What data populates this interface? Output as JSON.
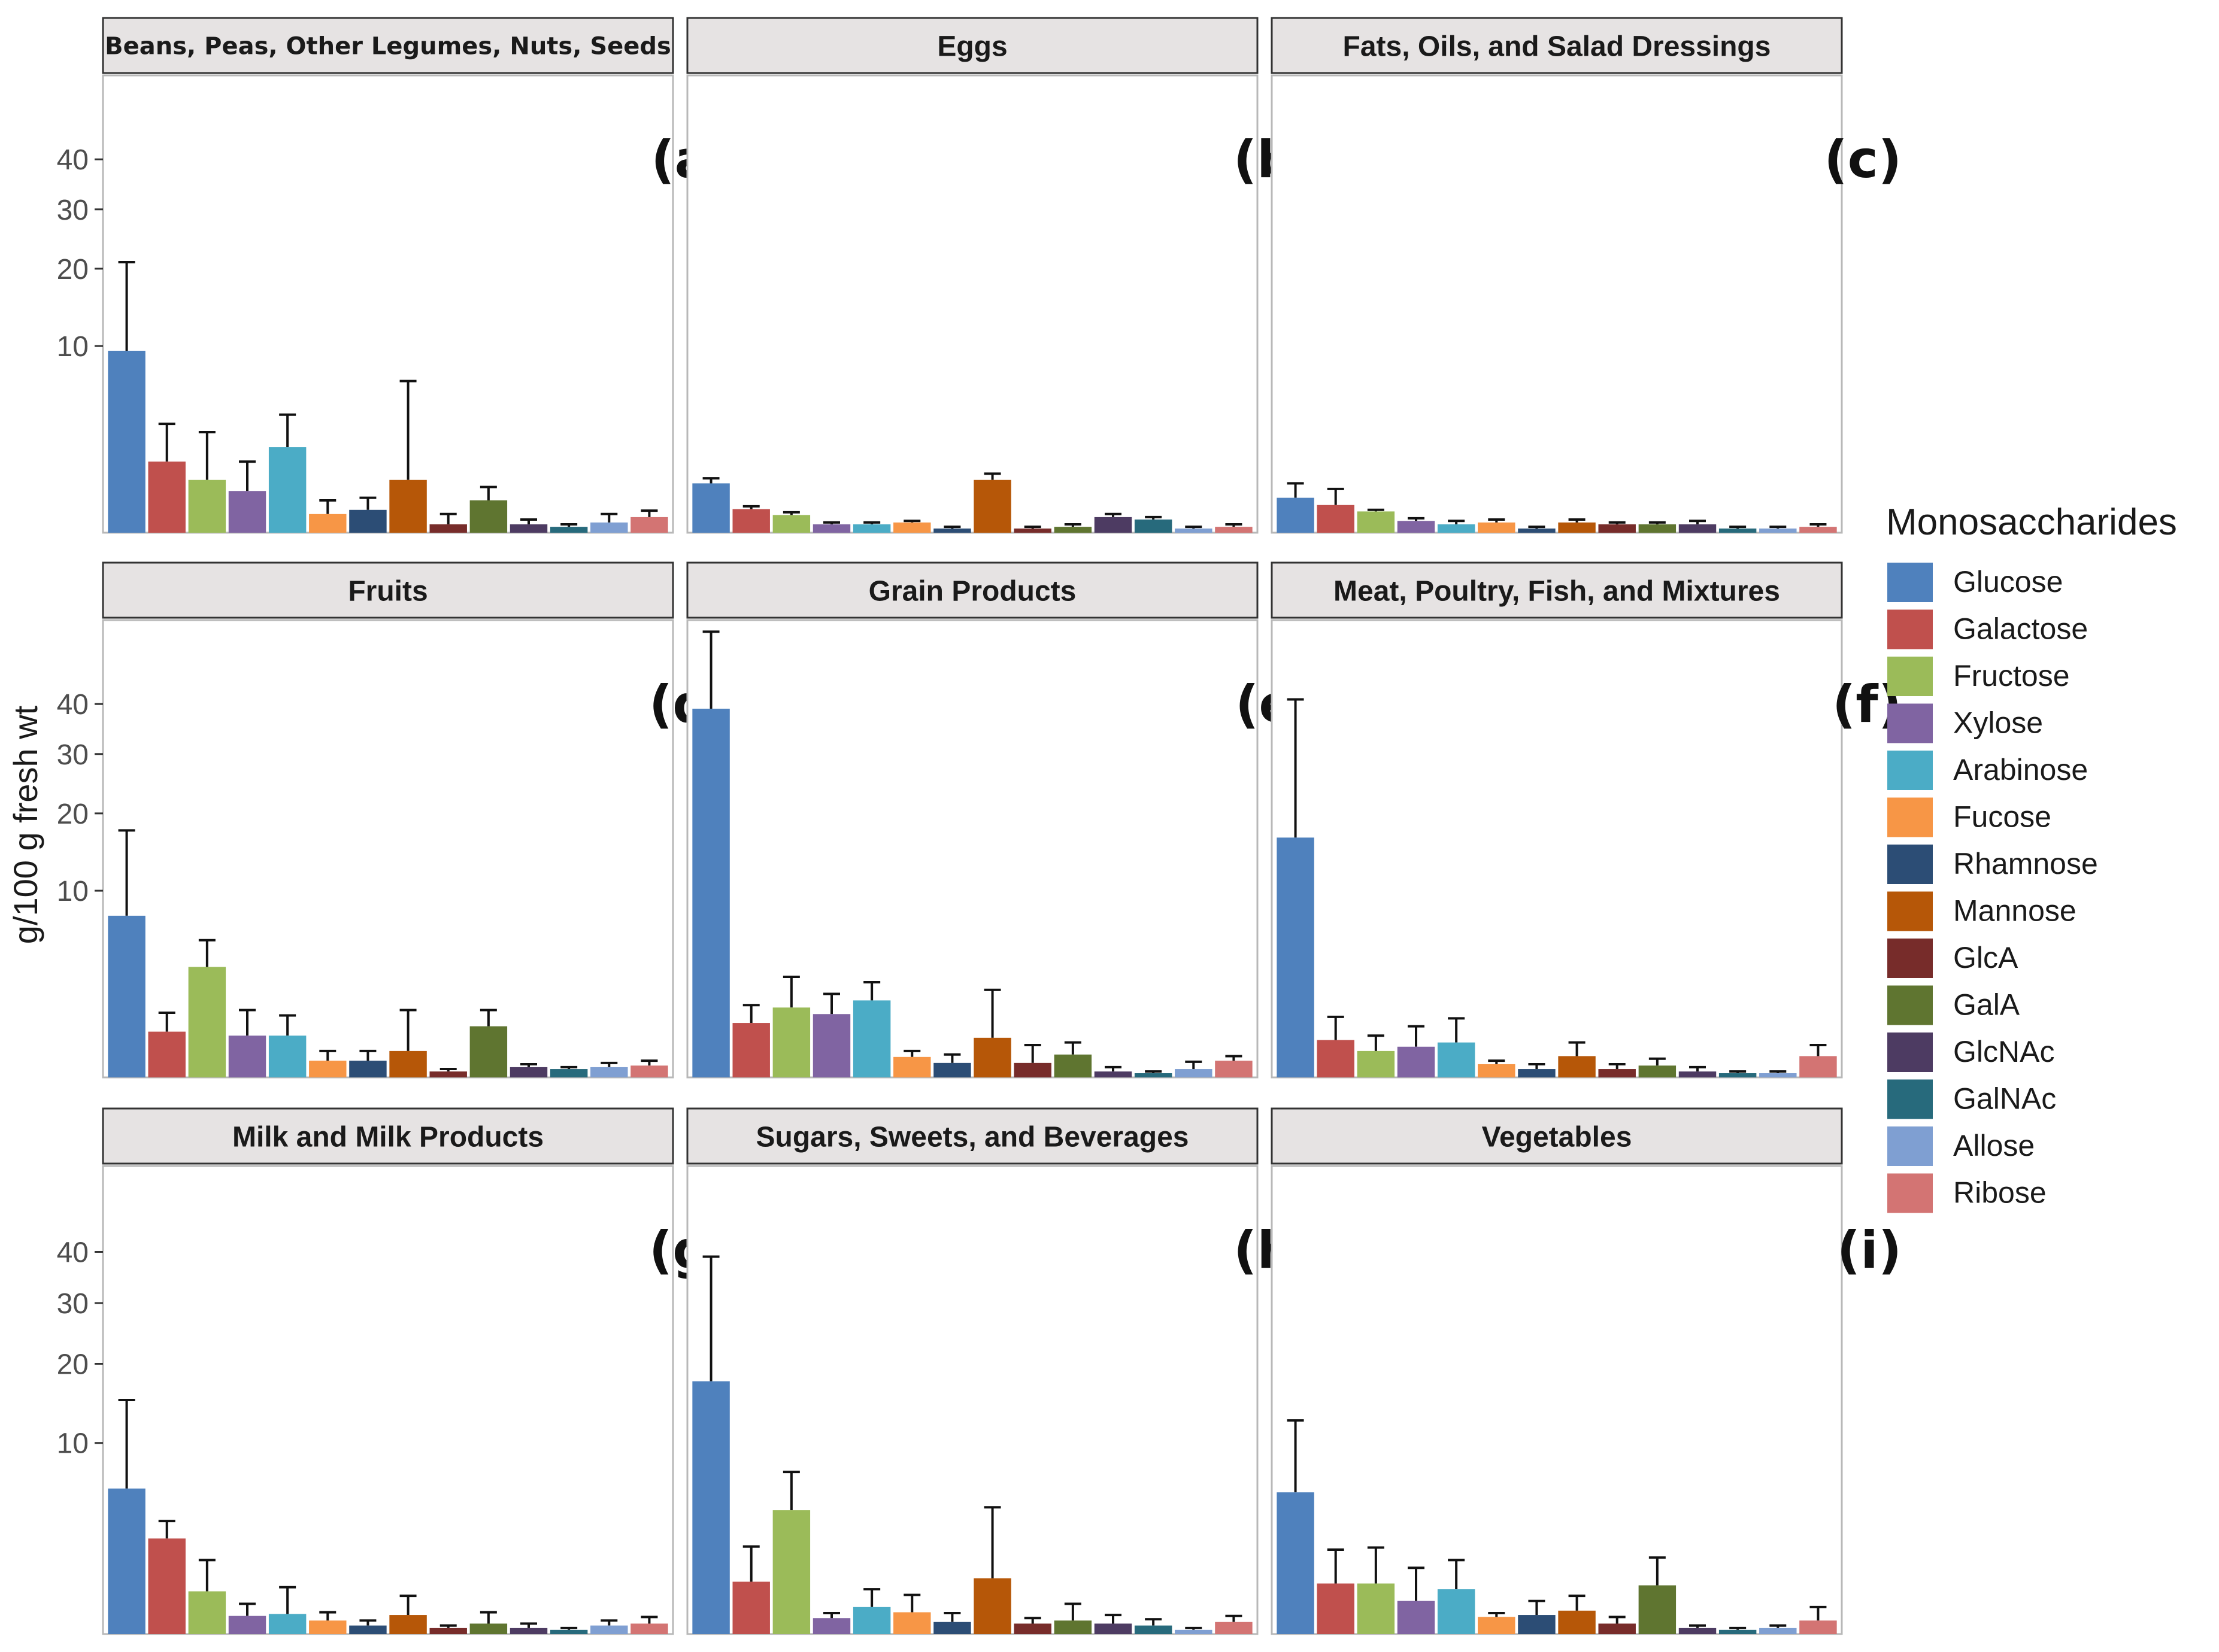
{
  "chart_data": {
    "type": "bar",
    "ylabel": "g/100 g fresh wt",
    "y_scale": "sqrt",
    "ylim": [
      0,
      60
    ],
    "y_ticks": [
      10,
      20,
      30,
      40
    ],
    "y_tick_labels": [
      "10",
      "20",
      "30",
      "40"
    ],
    "legend": {
      "title": "Monosaccharides",
      "position": "right",
      "entries": [
        {
          "name": "Glucose",
          "color": "#4F81BD"
        },
        {
          "name": "Galactose",
          "color": "#C0504D"
        },
        {
          "name": "Fructose",
          "color": "#9BBB59"
        },
        {
          "name": "Xylose",
          "color": "#8064A2"
        },
        {
          "name": "Arabinose",
          "color": "#4BACC6"
        },
        {
          "name": "Fucose",
          "color": "#F79646"
        },
        {
          "name": "Rhamnose",
          "color": "#2C4D75"
        },
        {
          "name": "Mannose",
          "color": "#B65708"
        },
        {
          "name": "GlcA",
          "color": "#772C2A"
        },
        {
          "name": "GalA",
          "color": "#5F7530"
        },
        {
          "name": "GlcNAc",
          "color": "#4D3B62"
        },
        {
          "name": "GalNAc",
          "color": "#276A7C"
        },
        {
          "name": "Allose",
          "color": "#7F9FD2"
        },
        {
          "name": "Ribose",
          "color": "#D37473"
        }
      ]
    },
    "categories": [
      "Glucose",
      "Galactose",
      "Fructose",
      "Xylose",
      "Arabinose",
      "Fucose",
      "Rhamnose",
      "Mannose",
      "GlcA",
      "GalA",
      "GlcNAc",
      "GalNAc",
      "Allose",
      "Ribose"
    ],
    "panels": [
      {
        "strip": "Beans, Peas, Other Legumes, Nuts, Seeds",
        "tag": "(a)",
        "values": [
          9.5,
          1.45,
          0.8,
          0.5,
          2.1,
          0.1,
          0.15,
          0.8,
          0.02,
          0.3,
          0.02,
          0.01,
          0.03,
          0.07
        ],
        "errors": [
          21,
          3.4,
          2.9,
          1.45,
          4.0,
          0.3,
          0.35,
          6.6,
          0.1,
          0.6,
          0.05,
          0.02,
          0.1,
          0.14
        ]
      },
      {
        "strip": "Eggs",
        "tag": "(b)",
        "values": [
          0.7,
          0.16,
          0.09,
          0.02,
          0.02,
          0.03,
          0.005,
          0.8,
          0.005,
          0.01,
          0.07,
          0.05,
          0.005,
          0.01
        ],
        "errors": [
          0.85,
          0.2,
          0.12,
          0.03,
          0.03,
          0.04,
          0.01,
          1.0,
          0.01,
          0.02,
          0.1,
          0.07,
          0.01,
          0.02
        ]
      },
      {
        "strip": "Fats, Oils, and Salad Dressings",
        "tag": "(c)",
        "values": [
          0.35,
          0.22,
          0.13,
          0.04,
          0.02,
          0.03,
          0.005,
          0.03,
          0.02,
          0.02,
          0.02,
          0.005,
          0.005,
          0.01
        ],
        "errors": [
          0.7,
          0.55,
          0.15,
          0.06,
          0.04,
          0.05,
          0.01,
          0.05,
          0.03,
          0.03,
          0.04,
          0.01,
          0.01,
          0.02
        ]
      },
      {
        "strip": "Fruits",
        "tag": "(d)",
        "values": [
          7.5,
          0.6,
          3.5,
          0.5,
          0.5,
          0.08,
          0.08,
          0.2,
          0.01,
          0.75,
          0.03,
          0.02,
          0.03,
          0.04
        ],
        "errors": [
          17.5,
          1.2,
          5.4,
          1.3,
          1.1,
          0.2,
          0.2,
          1.3,
          0.02,
          1.3,
          0.05,
          0.03,
          0.06,
          0.08
        ]
      },
      {
        "strip": "Grain Products",
        "tag": "(e)",
        "values": [
          39,
          0.85,
          1.4,
          1.15,
          1.7,
          0.12,
          0.06,
          0.45,
          0.06,
          0.15,
          0.01,
          0.005,
          0.02,
          0.08
        ],
        "errors": [
          57,
          1.5,
          2.9,
          2.0,
          2.6,
          0.2,
          0.15,
          2.2,
          0.3,
          0.35,
          0.03,
          0.01,
          0.07,
          0.13
        ]
      },
      {
        "strip": "Meat, Poultry, Fish, and Mixtures",
        "tag": "(f)",
        "values": [
          16.5,
          0.4,
          0.2,
          0.27,
          0.35,
          0.05,
          0.02,
          0.13,
          0.02,
          0.04,
          0.01,
          0.005,
          0.005,
          0.13
        ],
        "errors": [
          41,
          1.05,
          0.5,
          0.75,
          1.0,
          0.08,
          0.05,
          0.35,
          0.05,
          0.1,
          0.03,
          0.01,
          0.01,
          0.3
        ]
      },
      {
        "strip": "Milk and Milk Products",
        "tag": "(g)",
        "values": [
          5.8,
          2.5,
          0.5,
          0.09,
          0.11,
          0.05,
          0.02,
          0.1,
          0.01,
          0.03,
          0.01,
          0.005,
          0.02,
          0.03
        ],
        "errors": [
          15,
          3.5,
          1.5,
          0.25,
          0.6,
          0.13,
          0.05,
          0.4,
          0.02,
          0.13,
          0.03,
          0.01,
          0.05,
          0.08
        ]
      },
      {
        "strip": "Sugars, Sweets, and Beverages",
        "tag": "(h)",
        "values": [
          17.5,
          0.75,
          4.2,
          0.07,
          0.2,
          0.13,
          0.04,
          0.85,
          0.03,
          0.05,
          0.03,
          0.02,
          0.005,
          0.04
        ],
        "errors": [
          39,
          2.1,
          7.2,
          0.12,
          0.55,
          0.42,
          0.12,
          4.4,
          0.07,
          0.25,
          0.1,
          0.06,
          0.01,
          0.09
        ]
      },
      {
        "strip": "Vegetables",
        "tag": "(i)",
        "values": [
          5.5,
          0.7,
          0.7,
          0.3,
          0.55,
          0.08,
          0.1,
          0.15,
          0.03,
          0.65,
          0.01,
          0.005,
          0.01,
          0.05
        ],
        "errors": [
          12.5,
          1.95,
          2.05,
          1.2,
          1.5,
          0.12,
          0.3,
          0.4,
          0.08,
          1.6,
          0.02,
          0.01,
          0.02,
          0.2
        ]
      }
    ]
  }
}
